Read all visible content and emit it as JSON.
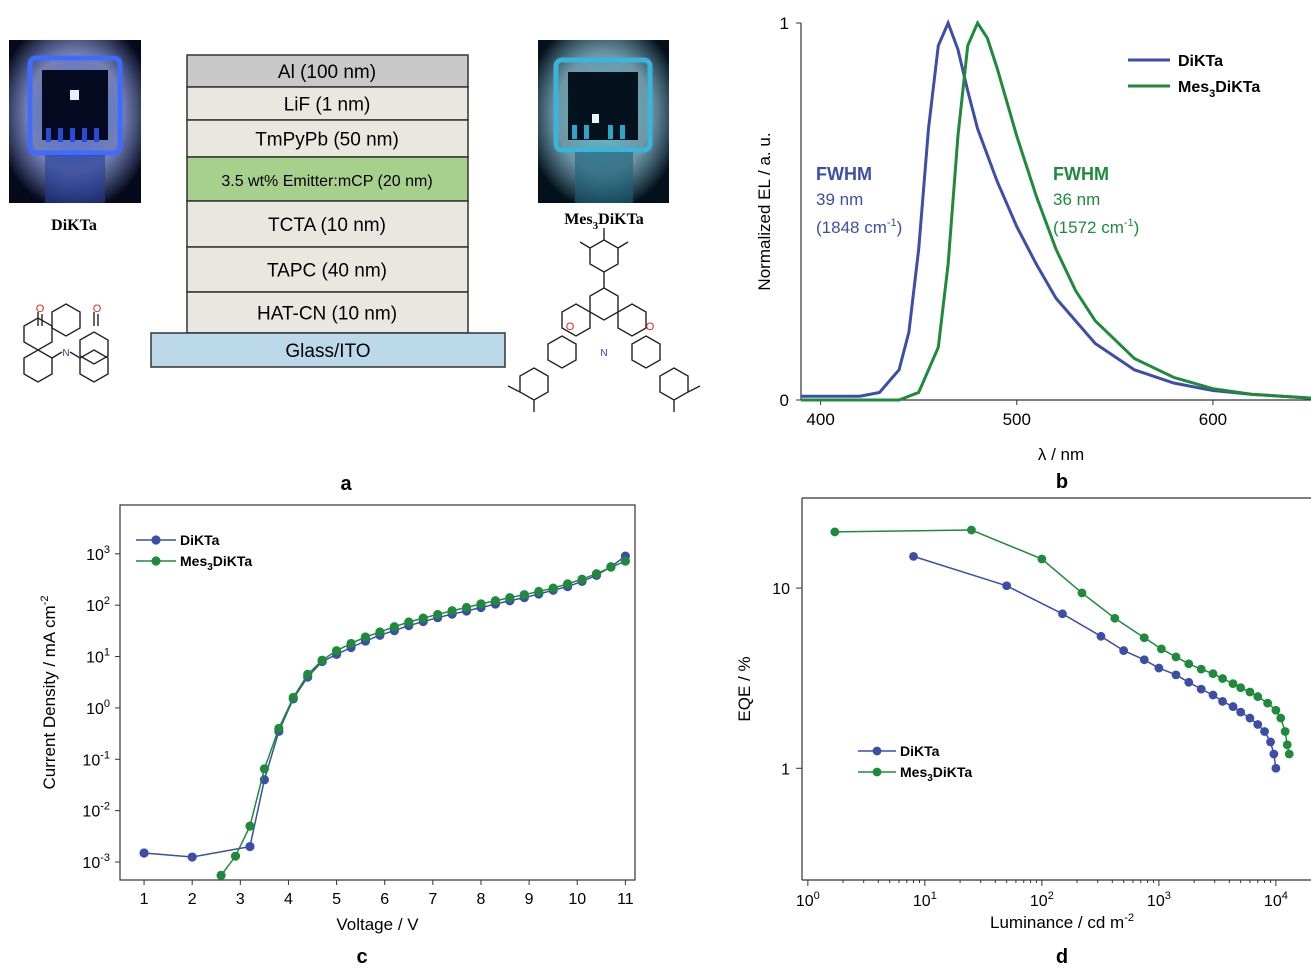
{
  "colors": {
    "blue": "#3d4ea8",
    "green": "#1f8a3c",
    "layer_grey": "#e8e8e0",
    "layer_al": "#c8c8c8",
    "layer_emitter": "#a8d08d",
    "layer_ito": "#bcd9ea",
    "pic_bg": "#0a1020",
    "blue_glow": "#2a55d0",
    "cyan_glow": "#48c8e0"
  },
  "panel_a": {
    "label": "a",
    "photo_left_caption": "DiKTa",
    "photo_right_caption_pre": "Mes",
    "photo_right_caption_sub": "3",
    "photo_right_caption_post": "DiKTa",
    "layers": [
      "Al (100 nm)",
      "LiF (1 nm)",
      "TmPyPb (50 nm)",
      "3.5 wt% Emitter:mCP (20 nm)",
      "TCTA (10 nm)",
      "TAPC (40 nm)",
      "HAT-CN (10 nm)",
      "Glass/ITO"
    ],
    "atom_o": "O",
    "atom_n": "N"
  },
  "chart_data": [
    {
      "panel": "b",
      "type": "line",
      "xlabel": "λ / nm",
      "ylabel": "Normalized EL / a. u.",
      "xlim": [
        390,
        650
      ],
      "ylim": [
        0,
        1
      ],
      "xticks": [
        400,
        500,
        600
      ],
      "yticks": [
        0,
        1
      ],
      "legend": [
        "DiKTa",
        "Mes3DiKTa"
      ],
      "legend_position": "top-right",
      "annotations": {
        "DiKTa": {
          "title": "FWHM",
          "width": "39 nm",
          "wavenumber": "(1848 cm",
          "sup": "-1",
          "close": ")"
        },
        "Mes3DiKTa": {
          "title": "FWHM",
          "width": "36 nm",
          "wavenumber": "(1572 cm",
          "sup": "-1",
          "close": ")"
        }
      },
      "series": [
        {
          "name": "DiKTa",
          "x": [
            390,
            420,
            430,
            440,
            445,
            450,
            455,
            460,
            465,
            470,
            475,
            480,
            490,
            500,
            510,
            520,
            540,
            560,
            580,
            600,
            620,
            650
          ],
          "y": [
            0.01,
            0.01,
            0.02,
            0.08,
            0.18,
            0.4,
            0.72,
            0.94,
            1.0,
            0.93,
            0.82,
            0.72,
            0.58,
            0.46,
            0.36,
            0.27,
            0.15,
            0.08,
            0.045,
            0.025,
            0.015,
            0.005
          ]
        },
        {
          "name": "Mes3DiKTa",
          "x": [
            390,
            440,
            450,
            460,
            465,
            470,
            475,
            480,
            485,
            490,
            500,
            510,
            520,
            530,
            540,
            560,
            580,
            600,
            620,
            650
          ],
          "y": [
            0.0,
            0.0,
            0.02,
            0.14,
            0.36,
            0.7,
            0.94,
            1.0,
            0.96,
            0.88,
            0.7,
            0.54,
            0.4,
            0.29,
            0.21,
            0.11,
            0.06,
            0.03,
            0.015,
            0.005
          ]
        }
      ]
    },
    {
      "panel": "c",
      "type": "line",
      "xlabel": "Voltage / V",
      "ylabel": "Current Density / mA cm",
      "ylabel_sup": "-2",
      "xlim": [
        0.5,
        11.2
      ],
      "ylim_log10": [
        -3.35,
        3.95
      ],
      "xticks": [
        1,
        2,
        3,
        4,
        5,
        6,
        7,
        8,
        9,
        10,
        11
      ],
      "yticks_exp": [
        -3,
        -2,
        -1,
        0,
        1,
        2,
        3
      ],
      "ytick_base": "10",
      "legend": [
        "DiKTa",
        "Mes3DiKTa"
      ],
      "legend_position": "top-left",
      "series": [
        {
          "name": "DiKTa",
          "x": [
            1,
            2,
            3.2,
            3.5,
            3.8,
            4.1,
            4.4,
            4.7,
            5.0,
            5.3,
            5.6,
            5.9,
            6.2,
            6.5,
            6.8,
            7.1,
            7.4,
            7.7,
            8.0,
            8.3,
            8.6,
            8.9,
            9.2,
            9.5,
            9.8,
            10.1,
            10.4,
            10.7,
            11.0
          ],
          "y": [
            0.0015,
            0.00125,
            0.002,
            0.04,
            0.35,
            1.5,
            4,
            8,
            11,
            15,
            20,
            26,
            32,
            40,
            48,
            57,
            67,
            77,
            90,
            105,
            122,
            140,
            165,
            195,
            230,
            290,
            380,
            560,
            900
          ]
        },
        {
          "name": "Mes3DiKTa",
          "x": [
            2.6,
            2.9,
            3.2,
            3.5,
            3.8,
            4.1,
            4.4,
            4.7,
            5.0,
            5.3,
            5.6,
            5.9,
            6.2,
            6.5,
            6.8,
            7.1,
            7.4,
            7.7,
            8.0,
            8.3,
            8.6,
            8.9,
            9.2,
            9.5,
            9.8,
            10.1,
            10.4,
            10.7,
            11.0
          ],
          "y": [
            0.00055,
            0.0013,
            0.005,
            0.065,
            0.4,
            1.6,
            4.5,
            8.5,
            13,
            18,
            24,
            30,
            38,
            47,
            56,
            66,
            78,
            90,
            106,
            122,
            140,
            160,
            185,
            215,
            260,
            320,
            410,
            550,
            720
          ]
        }
      ]
    },
    {
      "panel": "d",
      "type": "line",
      "xlabel": "Luminance / cd m",
      "xlabel_sup": "-2",
      "ylabel": "EQE / %",
      "xlim_log10": [
        -0.05,
        4.3
      ],
      "ylim_log10": [
        -0.62,
        1.5
      ],
      "xticks_exp": [
        0,
        1,
        2,
        3,
        4
      ],
      "yticks": [
        1,
        10
      ],
      "xtick_base": "10",
      "legend": [
        "DiKTa",
        "Mes3DiKTa"
      ],
      "legend_position": "bottom-left",
      "series": [
        {
          "name": "DiKTa",
          "x": [
            8,
            50,
            150,
            320,
            500,
            750,
            1000,
            1400,
            1800,
            2300,
            2900,
            3500,
            4300,
            5000,
            6000,
            7000,
            8000,
            9000,
            9600,
            10000
          ],
          "y": [
            15.0,
            10.3,
            7.2,
            5.4,
            4.5,
            4.0,
            3.6,
            3.3,
            3.0,
            2.75,
            2.55,
            2.35,
            2.2,
            2.05,
            1.9,
            1.75,
            1.6,
            1.4,
            1.2,
            1.0
          ]
        },
        {
          "name": "Mes3DiKTa",
          "x": [
            1.7,
            25,
            100,
            220,
            420,
            750,
            1050,
            1400,
            1800,
            2300,
            2900,
            3500,
            4300,
            5000,
            6000,
            7000,
            8500,
            10000,
            11000,
            12000,
            12500,
            13000
          ],
          "y": [
            20.5,
            21.0,
            14.5,
            9.4,
            6.8,
            5.3,
            4.6,
            4.15,
            3.8,
            3.55,
            3.35,
            3.15,
            2.95,
            2.8,
            2.65,
            2.5,
            2.3,
            2.1,
            1.9,
            1.6,
            1.35,
            1.2
          ]
        }
      ]
    }
  ],
  "panel_labels": {
    "b": "b",
    "c": "c",
    "d": "d"
  }
}
